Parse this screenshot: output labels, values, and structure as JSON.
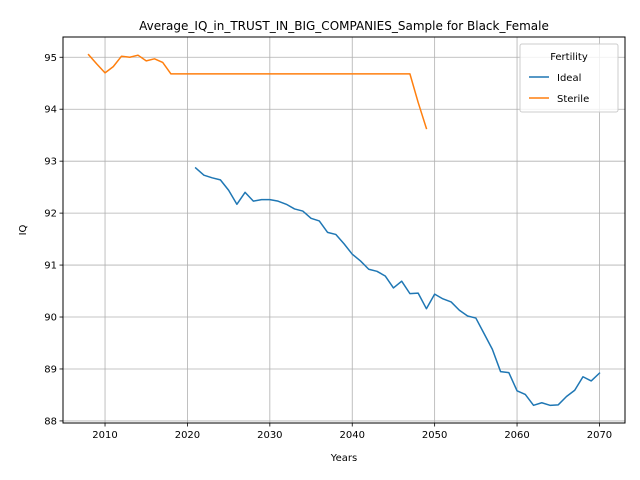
{
  "chart_data": {
    "type": "line",
    "title": "Average_IQ_in_TRUST_IN_BIG_COMPANIES_Sample for Black_Female",
    "xlabel": "Years",
    "ylabel": "IQ",
    "xlim": [
      2004.9,
      2073.1
    ],
    "ylim": [
      87.96,
      95.39
    ],
    "x_ticks": [
      2010,
      2020,
      2030,
      2040,
      2050,
      2060,
      2070
    ],
    "y_ticks": [
      88,
      89,
      90,
      91,
      92,
      93,
      94,
      95
    ],
    "grid": true,
    "legend": {
      "title": "Fertility",
      "placement": "top-right"
    },
    "series": [
      {
        "name": "Ideal",
        "color": "#1f77b4",
        "x": [
          2021,
          2022,
          2023,
          2024,
          2025,
          2026,
          2027,
          2028,
          2029,
          2030,
          2031,
          2032,
          2033,
          2034,
          2035,
          2036,
          2037,
          2038,
          2039,
          2040,
          2041,
          2042,
          2043,
          2044,
          2045,
          2046,
          2047,
          2048,
          2049,
          2050,
          2051,
          2052,
          2053,
          2054,
          2055,
          2056,
          2057,
          2058,
          2059,
          2060,
          2061,
          2062,
          2063,
          2064,
          2065,
          2066,
          2067,
          2068,
          2069,
          2070
        ],
        "values": [
          92.87,
          92.73,
          92.68,
          92.64,
          92.44,
          92.17,
          92.4,
          92.23,
          92.26,
          92.26,
          92.23,
          92.17,
          92.08,
          92.04,
          91.9,
          91.85,
          91.63,
          91.59,
          91.41,
          91.21,
          91.08,
          90.92,
          90.88,
          90.79,
          90.56,
          90.69,
          90.45,
          90.46,
          90.16,
          90.44,
          90.35,
          90.29,
          90.13,
          90.02,
          89.98,
          89.68,
          89.38,
          88.95,
          88.93,
          88.58,
          88.51,
          88.3,
          88.35,
          88.3,
          88.31,
          88.47,
          88.59,
          88.85,
          88.77,
          88.92
        ]
      },
      {
        "name": "Sterile",
        "color": "#ff7f0e",
        "x": [
          2008,
          2009,
          2010,
          2011,
          2012,
          2013,
          2014,
          2015,
          2016,
          2017,
          2018,
          2019,
          2020,
          2021,
          2022,
          2023,
          2024,
          2025,
          2026,
          2027,
          2028,
          2029,
          2030,
          2031,
          2032,
          2033,
          2034,
          2035,
          2036,
          2037,
          2038,
          2039,
          2040,
          2041,
          2042,
          2043,
          2044,
          2045,
          2046,
          2047,
          2048,
          2049
        ],
        "values": [
          95.05,
          94.87,
          94.7,
          94.82,
          95.02,
          95.0,
          95.04,
          94.93,
          94.97,
          94.9,
          94.68,
          94.68,
          94.68,
          94.68,
          94.68,
          94.68,
          94.68,
          94.68,
          94.68,
          94.68,
          94.68,
          94.68,
          94.68,
          94.68,
          94.68,
          94.68,
          94.68,
          94.68,
          94.68,
          94.68,
          94.68,
          94.68,
          94.68,
          94.68,
          94.68,
          94.68,
          94.68,
          94.68,
          94.68,
          94.68,
          94.13,
          93.63
        ]
      }
    ]
  }
}
